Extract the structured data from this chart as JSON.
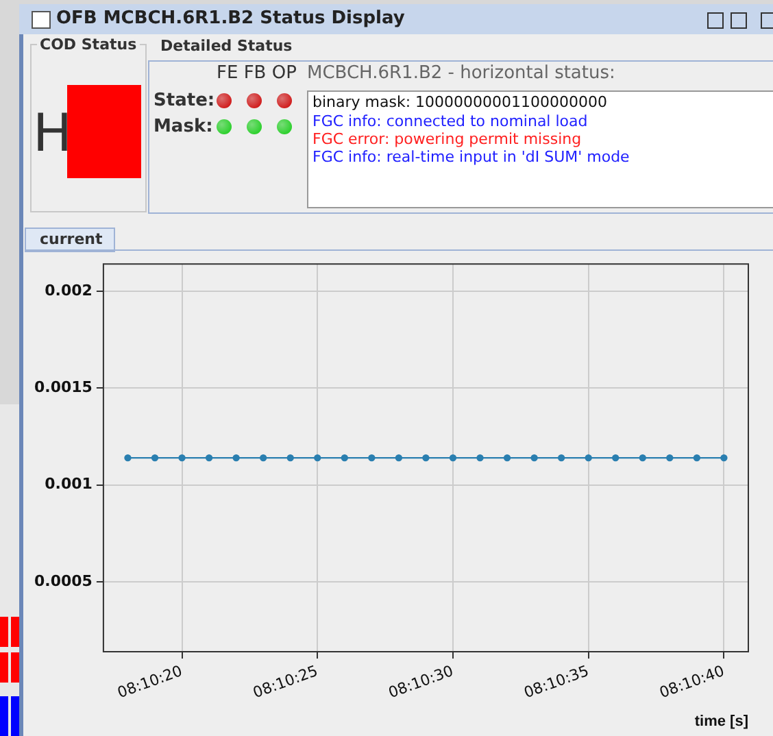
{
  "chart_data": {
    "type": "line",
    "title": "OFB MCBCH.6R1.B2 Status Display",
    "annotations": [
      "COD Status",
      "H",
      "Detailed Status",
      "FE FB OP",
      "MCBCH.6R1.B2  - horizontal status:",
      "State:",
      "Mask:",
      "binary mask: 10000000001100000000",
      "FGC info: connected to nominal load",
      "FGC error: powering permit missing",
      "FGC info: real-time input in 'dI SUM' mode",
      "current"
    ],
    "xlabel": "time [s]",
    "x": [
      8.1716667,
      8.1719444,
      8.1722222,
      8.1725,
      8.1727778,
      8.1730556,
      8.1733333,
      8.1736111,
      8.1738889,
      8.1741667,
      8.1744444,
      8.1747222,
      8.175,
      8.1752778,
      8.1755556,
      8.1758333,
      8.1761111,
      8.1763889,
      8.1766667,
      8.1769444,
      8.1772222,
      8.1775,
      8.1777778
    ],
    "series": [
      {
        "color": "#2a7fb0",
        "values": [
          0.00114,
          0.00114,
          0.00114,
          0.00114,
          0.00114,
          0.00114,
          0.00114,
          0.00114,
          0.00114,
          0.00114,
          0.00114,
          0.00114,
          0.00114,
          0.00114,
          0.00114,
          0.00114,
          0.00114,
          0.00114,
          0.00114,
          0.00114,
          0.00114,
          0.00114,
          0.00114
        ]
      }
    ],
    "xlim": [
      8.1714167,
      8.1780278
    ],
    "xticks": [
      {
        "value": 8.1722222,
        "label": "08:10:20"
      },
      {
        "value": 8.1736111,
        "label": "08:10:25"
      },
      {
        "value": 8.175,
        "label": "08:10:30"
      },
      {
        "value": 8.1763889,
        "label": "08:10:35"
      },
      {
        "value": 8.1777778,
        "label": "08:10:40"
      }
    ],
    "ylim": [
      0.00014,
      0.00214
    ],
    "yticks": [
      0.0005,
      0.001,
      0.0015,
      0.002
    ],
    "grid": true,
    "legend": false,
    "marker": "circle",
    "line_style": "solid"
  }
}
